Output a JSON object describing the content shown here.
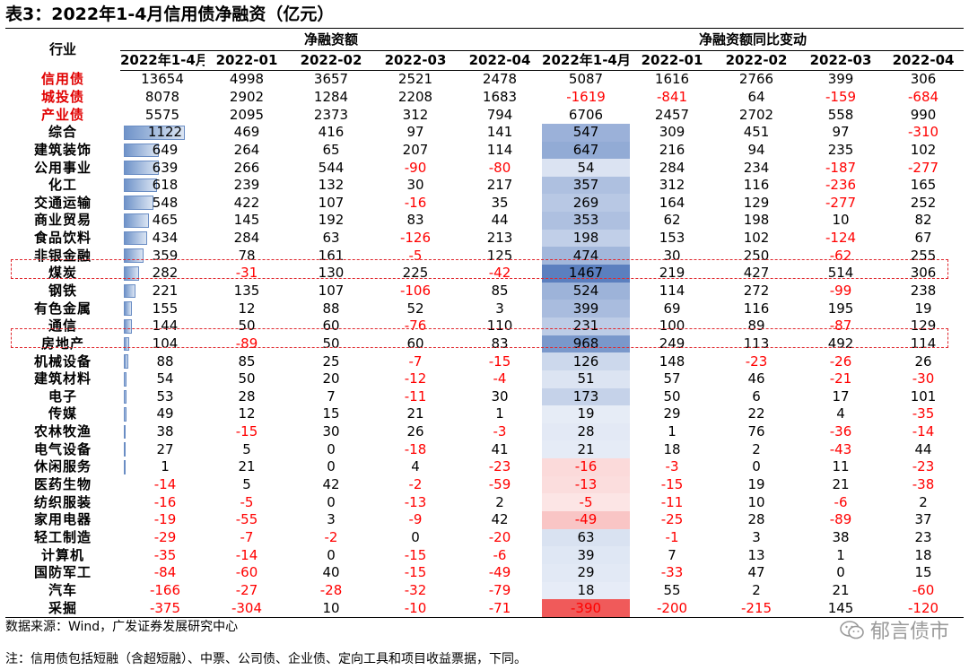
{
  "title": "表3：2022年1-4月信用债净融资（亿元）",
  "header": {
    "industry": "行业",
    "group1": "净融资额",
    "group2": "净融资额同比变动",
    "columns": [
      "2022年1-4月",
      "2022-01",
      "2022-02",
      "2022-03",
      "2022-04",
      "2022年1-4月",
      "2022-01",
      "2022-02",
      "2022-03",
      "2022-04"
    ]
  },
  "summary_rows": [
    {
      "name": "信用债",
      "values": [
        "13654",
        "4998",
        "3657",
        "2521",
        "2478",
        "5087",
        "1616",
        "2766",
        "399",
        "306"
      ]
    },
    {
      "name": "城投债",
      "values": [
        "8078",
        "2902",
        "1284",
        "2208",
        "1683",
        "-1619",
        "-841",
        "64",
        "-159",
        "-684"
      ]
    },
    {
      "name": "产业债",
      "values": [
        "5575",
        "2095",
        "2373",
        "312",
        "794",
        "6706",
        "2457",
        "2702",
        "558",
        "990"
      ]
    }
  ],
  "rows": [
    {
      "name": "综合",
      "values": [
        "1122",
        "469",
        "416",
        "97",
        "141",
        "547",
        "309",
        "451",
        "97",
        "-310"
      ]
    },
    {
      "name": "建筑装饰",
      "values": [
        "649",
        "264",
        "65",
        "207",
        "114",
        "647",
        "216",
        "94",
        "235",
        "102"
      ]
    },
    {
      "name": "公用事业",
      "values": [
        "639",
        "266",
        "544",
        "-90",
        "-80",
        "54",
        "284",
        "234",
        "-187",
        "-277"
      ]
    },
    {
      "name": "化工",
      "values": [
        "618",
        "239",
        "132",
        "30",
        "217",
        "357",
        "312",
        "116",
        "-236",
        "165"
      ]
    },
    {
      "name": "交通运输",
      "values": [
        "548",
        "422",
        "107",
        "-16",
        "35",
        "269",
        "164",
        "129",
        "-277",
        "252"
      ]
    },
    {
      "name": "商业贸易",
      "values": [
        "465",
        "145",
        "192",
        "83",
        "44",
        "353",
        "62",
        "198",
        "10",
        "82"
      ]
    },
    {
      "name": "食品饮料",
      "values": [
        "434",
        "284",
        "63",
        "-126",
        "213",
        "198",
        "153",
        "102",
        "-124",
        "67"
      ]
    },
    {
      "name": "非银金融",
      "values": [
        "359",
        "78",
        "161",
        "-5",
        "125",
        "474",
        "30",
        "250",
        "-62",
        "255"
      ]
    },
    {
      "name": "煤炭",
      "values": [
        "282",
        "-31",
        "130",
        "225",
        "-42",
        "1467",
        "219",
        "427",
        "514",
        "306"
      ]
    },
    {
      "name": "钢铁",
      "values": [
        "221",
        "135",
        "107",
        "-106",
        "85",
        "524",
        "114",
        "272",
        "-99",
        "238"
      ]
    },
    {
      "name": "有色金属",
      "values": [
        "155",
        "12",
        "88",
        "52",
        "3",
        "399",
        "69",
        "116",
        "195",
        "19"
      ]
    },
    {
      "name": "通信",
      "values": [
        "144",
        "50",
        "60",
        "-76",
        "110",
        "231",
        "100",
        "89",
        "-87",
        "129"
      ]
    },
    {
      "name": "房地产",
      "values": [
        "104",
        "-89",
        "50",
        "60",
        "83",
        "968",
        "249",
        "113",
        "492",
        "114"
      ]
    },
    {
      "name": "机械设备",
      "values": [
        "88",
        "85",
        "25",
        "-7",
        "-15",
        "126",
        "148",
        "-23",
        "-26",
        "26"
      ]
    },
    {
      "name": "建筑材料",
      "values": [
        "54",
        "50",
        "20",
        "-12",
        "-4",
        "51",
        "57",
        "46",
        "-21",
        "-30"
      ]
    },
    {
      "name": "电子",
      "values": [
        "53",
        "28",
        "7",
        "-11",
        "30",
        "173",
        "50",
        "6",
        "17",
        "101"
      ]
    },
    {
      "name": "传媒",
      "values": [
        "49",
        "12",
        "15",
        "21",
        "1",
        "19",
        "29",
        "22",
        "4",
        "-35"
      ]
    },
    {
      "name": "农林牧渔",
      "values": [
        "38",
        "-15",
        "30",
        "26",
        "-3",
        "28",
        "1",
        "76",
        "-36",
        "-14"
      ]
    },
    {
      "name": "电气设备",
      "values": [
        "27",
        "5",
        "0",
        "-18",
        "41",
        "21",
        "18",
        "2",
        "-43",
        "44"
      ]
    },
    {
      "name": "休闲服务",
      "values": [
        "1",
        "21",
        "0",
        "4",
        "-23",
        "-16",
        "-3",
        "0",
        "11",
        "-23"
      ]
    },
    {
      "name": "医药生物",
      "values": [
        "-14",
        "5",
        "42",
        "-2",
        "-59",
        "-13",
        "-15",
        "19",
        "21",
        "-38"
      ]
    },
    {
      "name": "纺织服装",
      "values": [
        "-16",
        "-5",
        "0",
        "-13",
        "2",
        "-5",
        "-11",
        "10",
        "-6",
        "2"
      ]
    },
    {
      "name": "家用电器",
      "values": [
        "-19",
        "-55",
        "3",
        "-9",
        "42",
        "-49",
        "-25",
        "28",
        "-89",
        "37"
      ]
    },
    {
      "name": "轻工制造",
      "values": [
        "-29",
        "-7",
        "-2",
        "0",
        "-20",
        "63",
        "-1",
        "3",
        "38",
        "23"
      ]
    },
    {
      "name": "计算机",
      "values": [
        "-35",
        "-14",
        "0",
        "-15",
        "-6",
        "39",
        "7",
        "13",
        "1",
        "18"
      ]
    },
    {
      "name": "国防军工",
      "values": [
        "-84",
        "-60",
        "40",
        "-15",
        "-49",
        "29",
        "-33",
        "47",
        "0",
        "15"
      ]
    },
    {
      "name": "汽车",
      "values": [
        "-166",
        "-27",
        "-28",
        "-32",
        "-79",
        "18",
        "55",
        "2",
        "21",
        "-60"
      ]
    },
    {
      "name": "采掘",
      "values": [
        "-375",
        "-304",
        "10",
        "-10",
        "-71",
        "-390",
        "-200",
        "-215",
        "145",
        "-120"
      ]
    }
  ],
  "highlighted_rows": [
    "煤炭",
    "房地产"
  ],
  "colors": {
    "negative": "#ff0000",
    "summary_label": "#e00000",
    "bar_positive": "#6f93c9",
    "bar_negative": "#f06060",
    "heat_high": "#5b7fbf",
    "heat_low": "#f05a5a",
    "dash_box": "#e0282e"
  },
  "footer": {
    "source": "数据来源：Wind，广发证券发展研究中心",
    "note": "注：信用债包括短融（含超短融）、中票、公司债、企业债、定向工具和项目收益票据，下同。"
  },
  "watermark": {
    "icon": "wechat-icon",
    "text": "郁言债市"
  }
}
